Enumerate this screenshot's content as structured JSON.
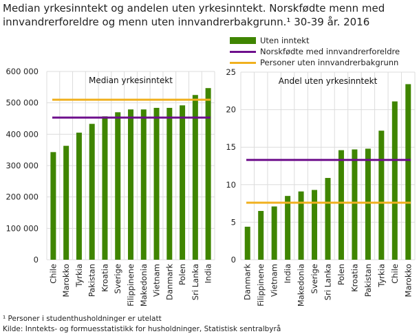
{
  "title_line1": "Median yrkesinntekt og andelen uten yrkesinntekt. Norskfødte menn med",
  "title_line2": "innvandrerforeldre og menn uten innvandrerbakgrunn.¹ 30-39 år. 2016",
  "legend": [
    {
      "label": "Uten inntekt",
      "color": "#3f8500",
      "type": "bar"
    },
    {
      "label": "Norskfødte med innvandrerforeldre",
      "color": "#6e0f8c",
      "type": "line"
    },
    {
      "label": "Personer uten innvandrerbakgrunn",
      "color": "#f0b01e",
      "type": "line"
    }
  ],
  "footnote": "¹ Personer i studenthusholdninger  er utelatt",
  "source": "Kilde: Inntekts- og formuesstatistikk for husholdninger, Statistisk sentralbyrå",
  "chart_data": [
    {
      "type": "bar",
      "title": "Median yrkesinntekt",
      "ylim": [
        0,
        600000
      ],
      "yticks": [
        0,
        100000,
        200000,
        300000,
        400000,
        500000,
        600000
      ],
      "ytick_labels": [
        "0",
        "100 000",
        "200 000",
        "300 000",
        "400 000",
        "500 000",
        "600 000"
      ],
      "categories": [
        "Chile",
        "Marokko",
        "Tyrkia",
        "Pakistan",
        "Kroatia",
        "Sverige",
        "Filippinene",
        "Makedonia",
        "Vietnam",
        "Danmark",
        "Polen",
        "Sri Lanka",
        "India"
      ],
      "values": [
        343000,
        363000,
        405000,
        433000,
        457000,
        470000,
        479000,
        479000,
        484000,
        484000,
        492000,
        525000,
        547000
      ],
      "lines": {
        "Norskfødte med innvandrerforeldre": 453000,
        "Personer uten innvandrerbakgrunn": 510000
      }
    },
    {
      "type": "bar",
      "title": "Andel uten yrkesinntekt",
      "ylim": [
        0,
        25
      ],
      "yticks": [
        0,
        5,
        10,
        15,
        20,
        25
      ],
      "ytick_labels": [
        "0",
        "5",
        "10",
        "15",
        "20",
        "25"
      ],
      "categories": [
        "Danmark",
        "Filippinene",
        "Vietnam",
        "India",
        "Makedonia",
        "Sverige",
        "Sri Lanka",
        "Polen",
        "Kroatia",
        "Pakistan",
        "Tyrkia",
        "Chile",
        "Marokko"
      ],
      "values": [
        4.4,
        6.5,
        7.1,
        8.5,
        9.1,
        9.3,
        10.9,
        14.6,
        14.7,
        14.8,
        17.2,
        21.1,
        23.4
      ],
      "lines": {
        "Norskfødte med innvandrerforeldre": 13.3,
        "Personer uten innvandrerbakgrunn": 7.6
      }
    }
  ]
}
